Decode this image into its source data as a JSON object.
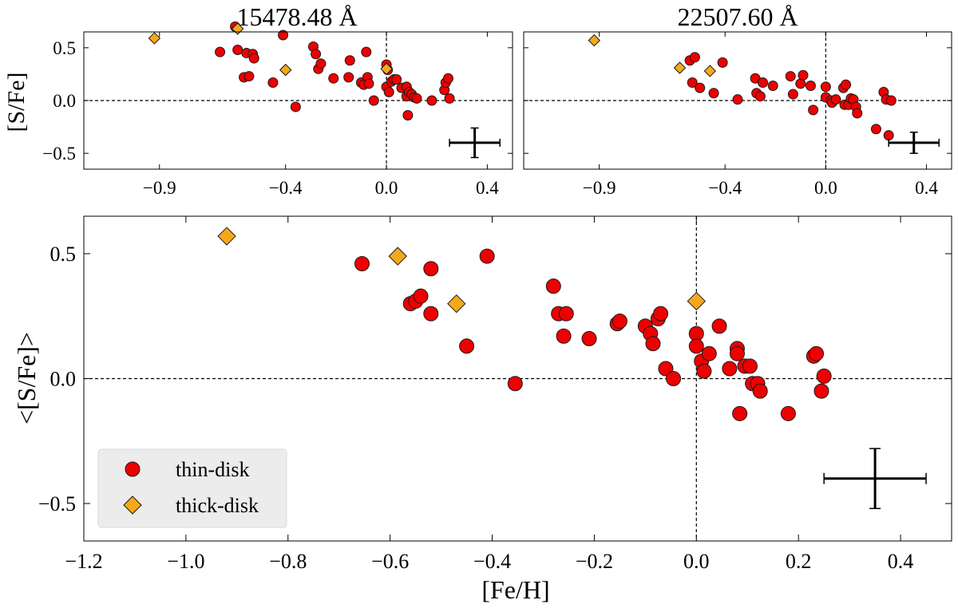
{
  "figure": {
    "title": ""
  },
  "panels": [
    {
      "id": "top-left",
      "title": "15478.48 Å",
      "ylabel": "[S/Fe]",
      "xlabel": "",
      "xlim": [
        -1.2,
        0.5
      ],
      "ylim": [
        -0.65,
        0.65
      ],
      "xticks": [
        -0.9,
        -0.4,
        0.0,
        0.4
      ],
      "xticklabels": [
        "−0.9",
        "−0.4",
        "0.0",
        "0.4"
      ],
      "yticks": [
        -0.5,
        0.0,
        0.5
      ],
      "yticklabels": [
        "−0.5",
        "0.0",
        "0.5"
      ],
      "errorbar": {
        "x": 0.35,
        "y": -0.4,
        "xerr": 0.1,
        "yerr": 0.14
      }
    },
    {
      "id": "top-right",
      "title": "22507.60 Å",
      "ylabel": "",
      "xlabel": "",
      "xlim": [
        -1.2,
        0.5
      ],
      "ylim": [
        -0.65,
        0.65
      ],
      "xticks": [
        -0.9,
        -0.4,
        0.0,
        0.4
      ],
      "xticklabels": [
        "−0.9",
        "−0.4",
        "0.0",
        "0.4"
      ],
      "yticks": [
        -0.5,
        0.0,
        0.5
      ],
      "yticklabels": [
        "",
        "",
        ""
      ],
      "errorbar": {
        "x": 0.35,
        "y": -0.4,
        "xerr": 0.1,
        "yerr": 0.1
      }
    },
    {
      "id": "bottom",
      "title": "",
      "ylabel": "<[S/Fe]>",
      "xlabel": "[Fe/H]",
      "xlim": [
        -1.2,
        0.5
      ],
      "ylim": [
        -0.65,
        0.65
      ],
      "xticks": [
        -1.2,
        -1.0,
        -0.8,
        -0.6,
        -0.4,
        -0.2,
        0.0,
        0.2,
        0.4
      ],
      "xticklabels": [
        "−1.2",
        "−1.0",
        "−0.8",
        "−0.6",
        "−0.4",
        "−0.2",
        "0.0",
        "0.2",
        "0.4"
      ],
      "yticks": [
        -0.5,
        0.0,
        0.5
      ],
      "yticklabels": [
        "−0.5",
        "0.0",
        "0.5"
      ],
      "errorbar": {
        "x": 0.35,
        "y": -0.4,
        "xerr": 0.1,
        "yerr": 0.12
      }
    }
  ],
  "legend": {
    "location": "lower-left",
    "entries": [
      {
        "label": "thin-disk",
        "marker": "circle"
      },
      {
        "label": "thick-disk",
        "marker": "diamond"
      }
    ]
  },
  "colors": {
    "thin": "#ee0000",
    "thick": "#f6a81c",
    "edge": "#1a1a1a",
    "legend_bg": "#ececec"
  },
  "chart_data": [
    {
      "type": "scatter",
      "title": "15478.48 Å",
      "xlabel": "",
      "ylabel": "[S/Fe]",
      "xlim": [
        -1.2,
        0.5
      ],
      "ylim": [
        -0.65,
        0.65
      ],
      "reference_lines": {
        "x": 0.0,
        "y": 0.0
      },
      "series": [
        {
          "name": "thin-disk",
          "points": [
            [
              -0.66,
              0.46
            ],
            [
              -0.6,
              0.7
            ],
            [
              -0.59,
              0.48
            ],
            [
              -0.565,
              0.22
            ],
            [
              -0.555,
              0.45
            ],
            [
              -0.545,
              0.23
            ],
            [
              -0.53,
              0.44
            ],
            [
              -0.525,
              0.4
            ],
            [
              -0.45,
              0.17
            ],
            [
              -0.41,
              0.62
            ],
            [
              -0.36,
              -0.06
            ],
            [
              -0.29,
              0.51
            ],
            [
              -0.28,
              0.44
            ],
            [
              -0.27,
              0.3
            ],
            [
              -0.26,
              0.35
            ],
            [
              -0.21,
              0.21
            ],
            [
              -0.15,
              0.22
            ],
            [
              -0.145,
              0.38
            ],
            [
              -0.1,
              0.17
            ],
            [
              -0.09,
              0.15
            ],
            [
              -0.08,
              0.46
            ],
            [
              -0.075,
              0.22
            ],
            [
              -0.07,
              0.16
            ],
            [
              -0.05,
              0.0
            ],
            [
              0.0,
              0.34
            ],
            [
              0.0,
              0.13
            ],
            [
              0.005,
              0.29
            ],
            [
              0.01,
              0.08
            ],
            [
              0.02,
              0.18
            ],
            [
              0.03,
              0.2
            ],
            [
              0.04,
              0.2
            ],
            [
              0.06,
              0.12
            ],
            [
              0.08,
              0.13
            ],
            [
              0.08,
              0.04
            ],
            [
              0.085,
              -0.14
            ],
            [
              0.09,
              0.08
            ],
            [
              0.1,
              0.06
            ],
            [
              0.11,
              0.03
            ],
            [
              0.12,
              0.02
            ],
            [
              0.18,
              0.0
            ],
            [
              0.23,
              0.1
            ],
            [
              0.235,
              0.17
            ],
            [
              0.245,
              0.21
            ],
            [
              0.25,
              0.02
            ]
          ]
        },
        {
          "name": "thick-disk",
          "points": [
            [
              -0.92,
              0.59
            ],
            [
              -0.59,
              0.68
            ],
            [
              -0.4,
              0.29
            ],
            [
              0.0,
              0.3
            ]
          ]
        }
      ]
    },
    {
      "type": "scatter",
      "title": "22507.60 Å",
      "xlabel": "",
      "ylabel": "",
      "xlim": [
        -1.2,
        0.5
      ],
      "ylim": [
        -0.65,
        0.65
      ],
      "reference_lines": {
        "x": 0.0,
        "y": 0.0
      },
      "series": [
        {
          "name": "thin-disk",
          "points": [
            [
              -0.54,
              0.38
            ],
            [
              -0.52,
              0.41
            ],
            [
              -0.53,
              0.17
            ],
            [
              -0.5,
              0.12
            ],
            [
              -0.445,
              0.07
            ],
            [
              -0.41,
              0.36
            ],
            [
              -0.35,
              0.01
            ],
            [
              -0.28,
              0.21
            ],
            [
              -0.275,
              0.07
            ],
            [
              -0.26,
              0.04
            ],
            [
              -0.25,
              0.17
            ],
            [
              -0.21,
              0.14
            ],
            [
              -0.14,
              0.23
            ],
            [
              -0.13,
              0.06
            ],
            [
              -0.1,
              0.16
            ],
            [
              -0.09,
              0.24
            ],
            [
              -0.06,
              0.14
            ],
            [
              -0.05,
              -0.09
            ],
            [
              0.0,
              0.13
            ],
            [
              0.0,
              0.03
            ],
            [
              0.02,
              0.0
            ],
            [
              0.025,
              -0.02
            ],
            [
              0.04,
              0.01
            ],
            [
              0.07,
              0.12
            ],
            [
              0.075,
              -0.04
            ],
            [
              0.08,
              0.15
            ],
            [
              0.09,
              -0.04
            ],
            [
              0.1,
              0.02
            ],
            [
              0.11,
              0.01
            ],
            [
              0.12,
              -0.06
            ],
            [
              0.125,
              -0.12
            ],
            [
              0.2,
              -0.27
            ],
            [
              0.23,
              0.08
            ],
            [
              0.24,
              0.01
            ],
            [
              0.25,
              -0.33
            ],
            [
              0.26,
              0.0
            ]
          ]
        },
        {
          "name": "thick-disk",
          "points": [
            [
              -0.92,
              0.57
            ],
            [
              -0.58,
              0.31
            ],
            [
              -0.46,
              0.28
            ]
          ]
        }
      ]
    },
    {
      "type": "scatter",
      "title": "",
      "xlabel": "[Fe/H]",
      "ylabel": "<[S/Fe]>",
      "xlim": [
        -1.2,
        0.5
      ],
      "ylim": [
        -0.65,
        0.65
      ],
      "reference_lines": {
        "x": 0.0,
        "y": 0.0
      },
      "series": [
        {
          "name": "thin-disk",
          "points": [
            [
              -0.655,
              0.46
            ],
            [
              -0.56,
              0.3
            ],
            [
              -0.55,
              0.31
            ],
            [
              -0.54,
              0.33
            ],
            [
              -0.52,
              0.44
            ],
            [
              -0.52,
              0.26
            ],
            [
              -0.45,
              0.13
            ],
            [
              -0.41,
              0.49
            ],
            [
              -0.355,
              -0.02
            ],
            [
              -0.28,
              0.37
            ],
            [
              -0.27,
              0.26
            ],
            [
              -0.26,
              0.17
            ],
            [
              -0.255,
              0.26
            ],
            [
              -0.21,
              0.16
            ],
            [
              -0.155,
              0.22
            ],
            [
              -0.15,
              0.23
            ],
            [
              -0.1,
              0.21
            ],
            [
              -0.09,
              0.18
            ],
            [
              -0.085,
              0.14
            ],
            [
              -0.075,
              0.24
            ],
            [
              -0.07,
              0.26
            ],
            [
              -0.06,
              0.04
            ],
            [
              -0.045,
              0.0
            ],
            [
              0.0,
              0.18
            ],
            [
              0.0,
              0.13
            ],
            [
              0.01,
              0.07
            ],
            [
              0.015,
              0.03
            ],
            [
              0.025,
              0.1
            ],
            [
              0.045,
              0.21
            ],
            [
              0.065,
              0.04
            ],
            [
              0.08,
              0.12
            ],
            [
              0.08,
              0.1
            ],
            [
              0.085,
              -0.14
            ],
            [
              0.095,
              0.05
            ],
            [
              0.105,
              0.05
            ],
            [
              0.11,
              -0.02
            ],
            [
              0.12,
              -0.02
            ],
            [
              0.125,
              -0.05
            ],
            [
              0.18,
              -0.14
            ],
            [
              0.23,
              0.09
            ],
            [
              0.235,
              0.1
            ],
            [
              0.245,
              -0.05
            ],
            [
              0.25,
              0.01
            ]
          ]
        },
        {
          "name": "thick-disk",
          "points": [
            [
              -0.92,
              0.57
            ],
            [
              -0.585,
              0.49
            ],
            [
              -0.47,
              0.3
            ],
            [
              0.0,
              0.31
            ]
          ]
        }
      ]
    }
  ]
}
